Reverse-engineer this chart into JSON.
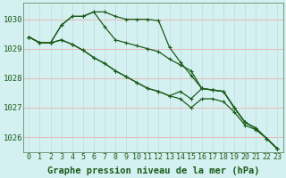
{
  "xlabel": "Graphe pression niveau de la mer (hPa)",
  "bg_color": "#d5f0f0",
  "grid_color_h": "#e8b8b8",
  "grid_color_v": "#b8dede",
  "line_color": "#1a5c1a",
  "ylim": [
    1025.5,
    1030.55
  ],
  "xlim": [
    -0.5,
    23.5
  ],
  "yticks": [
    1026,
    1027,
    1028,
    1029,
    1030
  ],
  "xticks": [
    0,
    1,
    2,
    3,
    4,
    5,
    6,
    7,
    8,
    9,
    10,
    11,
    12,
    13,
    14,
    15,
    16,
    17,
    18,
    19,
    20,
    21,
    22,
    23
  ],
  "series": [
    [
      1029.4,
      1029.2,
      1029.2,
      1029.8,
      1030.1,
      1030.1,
      1030.25,
      1030.25,
      1030.1,
      1030.0,
      1030.0,
      1030.0,
      1029.95,
      1029.05,
      1028.55,
      1028.1,
      1027.65,
      1027.6,
      1027.55,
      1027.0,
      1026.5,
      1026.3,
      1025.95,
      1025.6
    ],
    [
      1029.4,
      1029.2,
      1029.2,
      1029.8,
      1030.1,
      1030.1,
      1030.25,
      1029.75,
      1029.3,
      1029.2,
      1029.1,
      1029.0,
      1028.9,
      1028.65,
      1028.45,
      1028.25,
      1027.65,
      1027.6,
      1027.55,
      1027.0,
      1026.5,
      1026.3,
      1025.95,
      1025.6
    ],
    [
      1029.4,
      1029.2,
      1029.2,
      1029.3,
      1029.15,
      1028.95,
      1028.7,
      1028.5,
      1028.25,
      1028.05,
      1027.85,
      1027.65,
      1027.55,
      1027.4,
      1027.55,
      1027.3,
      1027.65,
      1027.6,
      1027.55,
      1027.0,
      1026.5,
      1026.3,
      1025.95,
      1025.6
    ],
    [
      1029.4,
      1029.2,
      1029.2,
      1029.3,
      1029.15,
      1028.95,
      1028.7,
      1028.5,
      1028.25,
      1028.05,
      1027.85,
      1027.65,
      1027.55,
      1027.4,
      1027.3,
      1027.0,
      1027.3,
      1027.3,
      1027.2,
      1026.85,
      1026.4,
      1026.25,
      1025.95,
      1025.6
    ]
  ],
  "title_fontsize": 7.5,
  "tick_fontsize": 6.5,
  "line_width": 0.9,
  "marker_size": 2.5
}
